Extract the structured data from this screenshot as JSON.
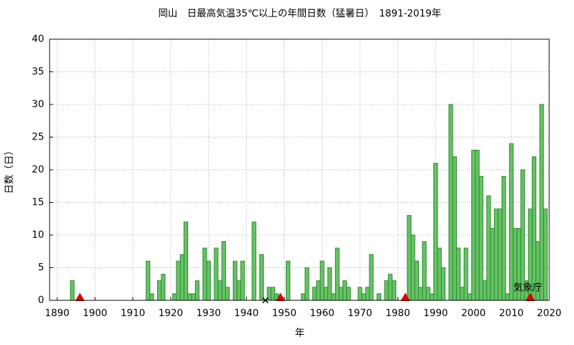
{
  "chart_data": {
    "type": "bar",
    "title": "岡山　日最高気温35℃以上の年間日数（猛暑日）　1891-2019年",
    "x_label": "年",
    "y_label": "日数（日）",
    "annotation": "気象庁",
    "color": "#66c266",
    "edge_color": "#2a8a2a",
    "x": [
      1891,
      1892,
      1893,
      1894,
      1895,
      1896,
      1897,
      1898,
      1899,
      1900,
      1901,
      1902,
      1903,
      1904,
      1905,
      1906,
      1907,
      1908,
      1909,
      1910,
      1911,
      1912,
      1913,
      1914,
      1915,
      1916,
      1917,
      1918,
      1919,
      1920,
      1921,
      1922,
      1923,
      1924,
      1925,
      1926,
      1927,
      1928,
      1929,
      1930,
      1931,
      1932,
      1933,
      1934,
      1935,
      1936,
      1937,
      1938,
      1939,
      1940,
      1941,
      1942,
      1943,
      1944,
      1945,
      1946,
      1947,
      1948,
      1949,
      1950,
      1951,
      1952,
      1953,
      1954,
      1955,
      1956,
      1957,
      1958,
      1959,
      1960,
      1961,
      1962,
      1963,
      1964,
      1965,
      1966,
      1967,
      1968,
      1969,
      1970,
      1971,
      1972,
      1973,
      1974,
      1975,
      1976,
      1977,
      1978,
      1979,
      1980,
      1981,
      1982,
      1983,
      1984,
      1985,
      1986,
      1987,
      1988,
      1989,
      1990,
      1991,
      1992,
      1993,
      1994,
      1995,
      1996,
      1997,
      1998,
      1999,
      2000,
      2001,
      2002,
      2003,
      2004,
      2005,
      2006,
      2007,
      2008,
      2009,
      2010,
      2011,
      2012,
      2013,
      2014,
      2015,
      2016,
      2017,
      2018,
      2019
    ],
    "values": [
      0,
      0,
      0,
      3,
      0,
      0,
      0,
      0,
      0,
      0,
      0,
      0,
      0,
      0,
      0,
      0,
      0,
      0,
      0,
      0,
      0,
      0,
      0,
      6,
      1,
      0,
      3,
      4,
      0,
      0,
      1,
      6,
      7,
      12,
      1,
      1,
      3,
      0,
      8,
      6,
      0,
      8,
      3,
      9,
      2,
      0,
      6,
      3,
      6,
      0,
      0,
      12,
      0,
      7,
      null,
      2,
      2,
      1,
      0,
      0,
      6,
      0,
      0,
      0,
      1,
      5,
      0,
      2,
      3,
      6,
      2,
      5,
      1,
      8,
      2,
      3,
      2,
      0,
      0,
      2,
      1,
      2,
      7,
      0,
      1,
      0,
      3,
      4,
      3,
      0,
      0,
      0,
      13,
      10,
      6,
      2,
      9,
      2,
      1,
      21,
      8,
      5,
      0,
      30,
      22,
      8,
      2,
      8,
      1,
      23,
      23,
      19,
      3,
      16,
      11,
      14,
      14,
      19,
      1,
      24,
      11,
      11,
      20,
      3,
      14,
      22,
      9,
      30,
      14
    ],
    "missing": [
      1945
    ],
    "markers": [
      1896,
      1949,
      1982,
      2015
    ],
    "marker_color": "#e00000",
    "xlim": [
      1888,
      2020
    ],
    "xticks": [
      1890,
      1900,
      1910,
      1920,
      1930,
      1940,
      1950,
      1960,
      1970,
      1980,
      1990,
      2000,
      2010,
      2020
    ],
    "ylim": [
      0,
      40
    ],
    "yticks": [
      0,
      5,
      10,
      15,
      20,
      25,
      30,
      35,
      40
    ],
    "grid": true
  }
}
